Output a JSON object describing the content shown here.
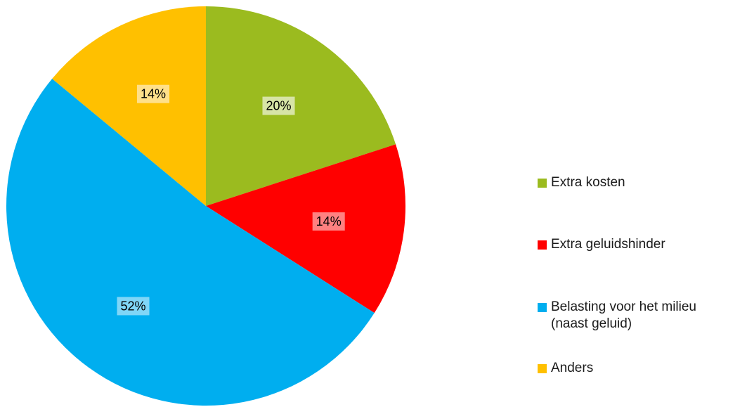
{
  "chart_data": {
    "type": "pie",
    "title": "",
    "categories": [
      "Extra kosten",
      "Extra geluidshinder",
      "Belasting voor het milieu\n(naast geluid)",
      "Anders"
    ],
    "values": [
      20,
      14,
      52,
      14
    ],
    "value_labels": [
      "20%",
      "14%",
      "52%",
      "14%"
    ],
    "colors": [
      "#9BBB1F",
      "#FF0000",
      "#00AEEF",
      "#FFC000"
    ],
    "label_backgrounds": [
      "#D7E4A6",
      "#FF8080",
      "#80D6F7",
      "#FFE08A"
    ],
    "start_angle_deg": 0,
    "direction": "clockwise",
    "legend_position": "right"
  }
}
